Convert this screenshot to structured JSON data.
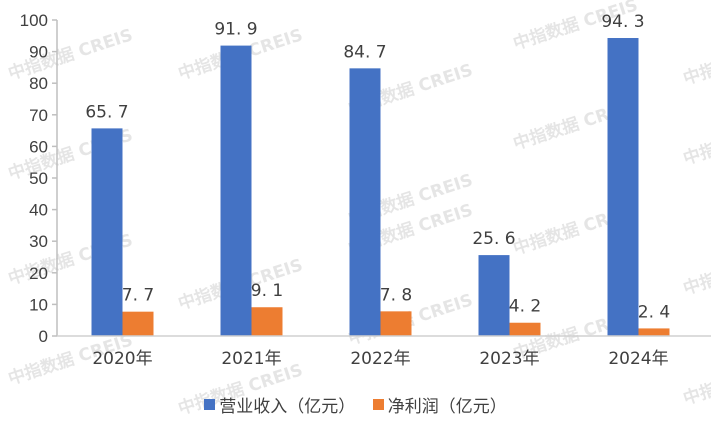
{
  "chart_data": {
    "type": "bar",
    "title": "",
    "xlabel": "",
    "ylabel": "",
    "categories": [
      "2020年",
      "2021年",
      "2022年",
      "2023年",
      "2024年"
    ],
    "series": [
      {
        "name": "营业收入（亿元）",
        "color": "#4472C4",
        "values": [
          65.7,
          91.9,
          84.7,
          25.6,
          94.3
        ]
      },
      {
        "name": "净利润（亿元）",
        "color": "#ED7D31",
        "values": [
          7.7,
          9.1,
          7.8,
          4.2,
          2.4
        ]
      }
    ],
    "ylim": [
      0,
      100
    ],
    "yticks": [
      0,
      10,
      20,
      30,
      40,
      50,
      60,
      70,
      80,
      90,
      100
    ],
    "grid": false,
    "legend_position": "bottom",
    "data_labels": true
  },
  "watermark": "中指数据 CREIS",
  "legend": {
    "items": [
      {
        "label": "营业收入（亿元）",
        "color": "#4472C4"
      },
      {
        "label": "净利润（亿元）",
        "color": "#ED7D31"
      }
    ]
  }
}
